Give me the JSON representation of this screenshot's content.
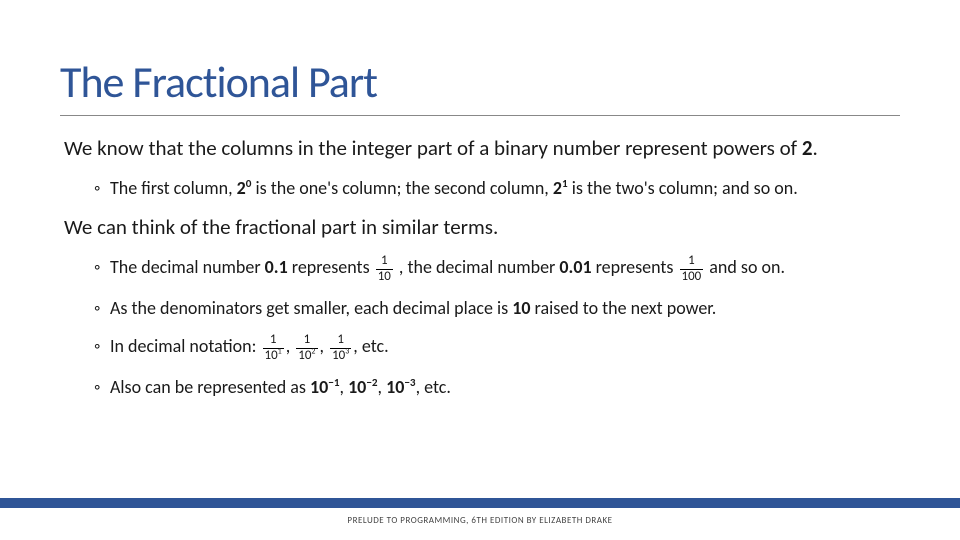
{
  "title": {
    "text": "The Fractional Part",
    "color": "#2f5597",
    "fontsize": 44
  },
  "bullets": {
    "p1_pre": " We know that the columns in the integer part of a binary number represent powers of ",
    "p1_bold": "2",
    "p1_post": ".",
    "p2a_pre": "The first column, ",
    "p2a_b1": "2",
    "p2a_sup1": "0",
    "p2a_mid": " is the one's column; the second column, ",
    "p2a_b2": "2",
    "p2a_sup2": "1",
    "p2a_post": " is the two's column; and so on.",
    "p3": "We can think of the fractional part in similar terms.",
    "p4_pre": "The decimal number ",
    "p4_b1": "0.1",
    "p4_mid1": " represents ",
    "p4_f1n": "1",
    "p4_f1d": "10",
    "p4_mid2": " , the decimal number ",
    "p4_b2": "0.01",
    "p4_mid3": " represents ",
    "p4_f2n": "1",
    "p4_f2d": "100",
    "p4_post": " and so on.",
    "p5_pre": "As the denominators get smaller, each decimal place is ",
    "p5_b": "10",
    "p5_post": " raised to the next power.",
    "p6_pre": "In decimal notation: ",
    "p6_f1n": "1",
    "p6_f1d_base": "10",
    "p6_f1d_sup": "1",
    "p6_c1": ", ",
    "p6_f2n": "1",
    "p6_f2d_base": "10",
    "p6_f2d_sup": "2",
    "p6_c2": ", ",
    "p6_f3n": "1",
    "p6_f3d_base": "10",
    "p6_f3d_sup": "3",
    "p6_post": ", etc.",
    "p7_pre": "Also can be represented as ",
    "p7_b1": "10",
    "p7_s1": "−1",
    "p7_c1": ", ",
    "p7_b2": "10",
    "p7_s2": "−2",
    "p7_c2": ", ",
    "p7_b3": "10",
    "p7_s3": "−3",
    "p7_post": ", etc."
  },
  "footer": {
    "bar_color": "#2f5597",
    "text": "PRELUDE TO PROGRAMMING, 6TH EDITION BY ELIZABETH DRAKE"
  },
  "colors": {
    "text": "#1a1a1a",
    "background": "#ffffff"
  }
}
